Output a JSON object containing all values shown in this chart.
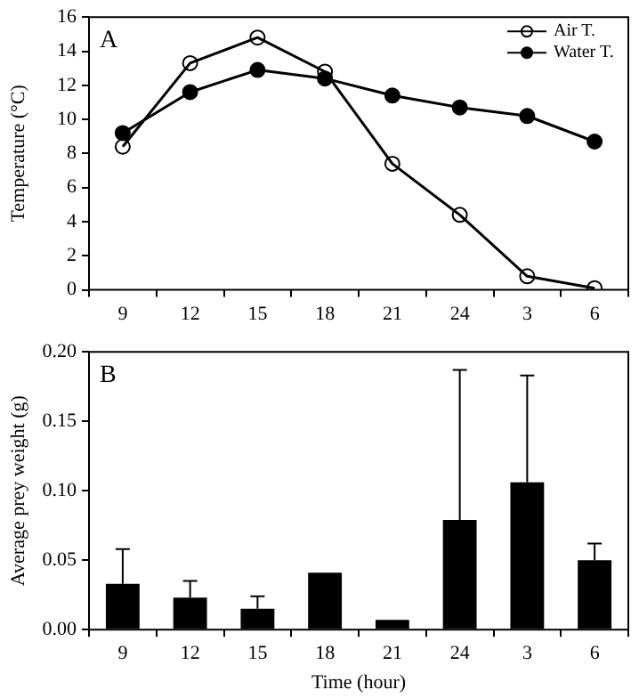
{
  "chart_data": [
    {
      "type": "line",
      "categories": [
        "9",
        "12",
        "15",
        "18",
        "21",
        "24",
        "3",
        "6"
      ],
      "ylabel": "Temperature (°C)",
      "ylim": [
        0,
        16
      ],
      "yticks": [
        0,
        2,
        4,
        6,
        8,
        10,
        12,
        14,
        16
      ],
      "marker": "circle",
      "legend": "top right",
      "grid": false,
      "annotations": [
        "A"
      ],
      "series": [
        {
          "name": "Air T.",
          "color": "#000000",
          "values": [
            8.4,
            13.3,
            14.8,
            12.8,
            7.4,
            4.4,
            0.8,
            0.1
          ]
        },
        {
          "name": "Water T.",
          "color": "#000000",
          "values": [
            9.2,
            11.6,
            12.9,
            12.4,
            11.4,
            10.7,
            10.2,
            8.7
          ]
        }
      ]
    },
    {
      "type": "bar",
      "categories": [
        "9",
        "12",
        "15",
        "18",
        "21",
        "24",
        "3",
        "6"
      ],
      "xlabel": "Time (hour)",
      "ylabel": "Average prey weight (g)",
      "ylim": [
        0,
        0.2
      ],
      "yticks": [
        {
          "value": 0,
          "label": "0.00"
        },
        {
          "value": 0.05,
          "label": "0.05"
        },
        {
          "value": 0.1,
          "label": "0.10"
        },
        {
          "value": 0.15,
          "label": "0.15"
        },
        {
          "value": 0.2,
          "label": "0.20"
        }
      ],
      "grid": false,
      "annotations": [
        "B"
      ],
      "color": "#000000",
      "values": [
        0.033,
        0.023,
        0.015,
        0.041,
        0.007,
        0.079,
        0.106,
        0.05
      ],
      "errors": [
        [
          0.033,
          0.058
        ],
        [
          0.023,
          0.035
        ],
        [
          0.015,
          0.024
        ],
        null,
        null,
        [
          0.079,
          0.187
        ],
        [
          0.106,
          0.183
        ],
        [
          0.05,
          0.062
        ]
      ]
    }
  ]
}
